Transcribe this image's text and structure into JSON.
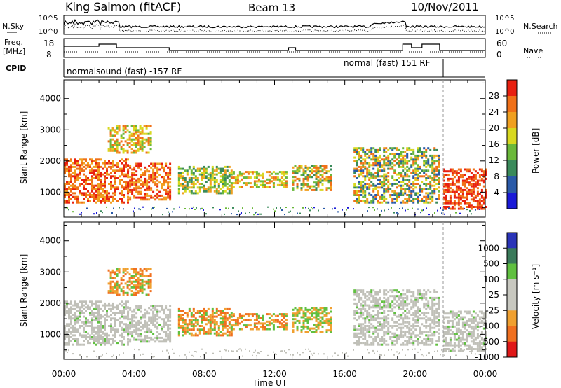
{
  "header": {
    "station": "King Salmon (fitACF)",
    "beam": "Beam 13",
    "date": "10/Nov/2011"
  },
  "colors": {
    "power_scale": [
      "#1a1ad8",
      "#2a5aa8",
      "#3a8a5a",
      "#6ab83a",
      "#d8d820",
      "#f0a020",
      "#f07018",
      "#e82010"
    ],
    "velocity_scale": [
      "#2a34b8",
      "#3a7a5a",
      "#60c040",
      "#c8c8c0",
      "#c8c8c0",
      "#f0a030",
      "#f07020",
      "#e01818"
    ],
    "ground_scatter": "#c0c0b8"
  },
  "top_panels": {
    "left_labels": [
      "N.Sky",
      "Freq.",
      "[MHz]",
      "CPID"
    ],
    "right_labels": [
      "N.Search",
      "Nave"
    ],
    "noise_ticks_left": [
      "10^5",
      "10^0"
    ],
    "noise_ticks_right": [
      "10^5",
      "10^0"
    ],
    "freq_ticks_left": [
      "18",
      "8"
    ],
    "nave_ticks_right": [
      "60",
      "0"
    ],
    "cpid_left": "normalsound (fast) -157 RF",
    "cpid_right": "normal (fast) 151 RF"
  },
  "chart_data": [
    {
      "type": "heatmap",
      "name": "Power",
      "ylabel": "Slant Range [km]",
      "yticks": [
        "1000",
        "2000",
        "3000",
        "4000"
      ],
      "ylim": [
        200,
        4600
      ],
      "xlim": [
        0,
        24
      ],
      "colorbar": {
        "label": "Power [dB]",
        "ticks": [
          "4",
          "8",
          "12",
          "16",
          "20",
          "24",
          "28"
        ]
      }
    },
    {
      "type": "heatmap",
      "name": "Velocity",
      "ylabel": "Slant Range [km]",
      "yticks": [
        "1000",
        "2000",
        "3000",
        "4000"
      ],
      "ylim": [
        200,
        4600
      ],
      "xlim": [
        0,
        24
      ],
      "colorbar": {
        "label": "Velocity [m s⁻¹]",
        "ticks": [
          "1000",
          "500",
          "100",
          "25",
          "-25",
          "-100",
          "-500",
          "-1000"
        ]
      }
    }
  ],
  "xaxis": {
    "label": "Time UT",
    "ticks": [
      "00:00",
      "04:00",
      "08:00",
      "12:00",
      "16:00",
      "20:00",
      "00:00"
    ]
  }
}
